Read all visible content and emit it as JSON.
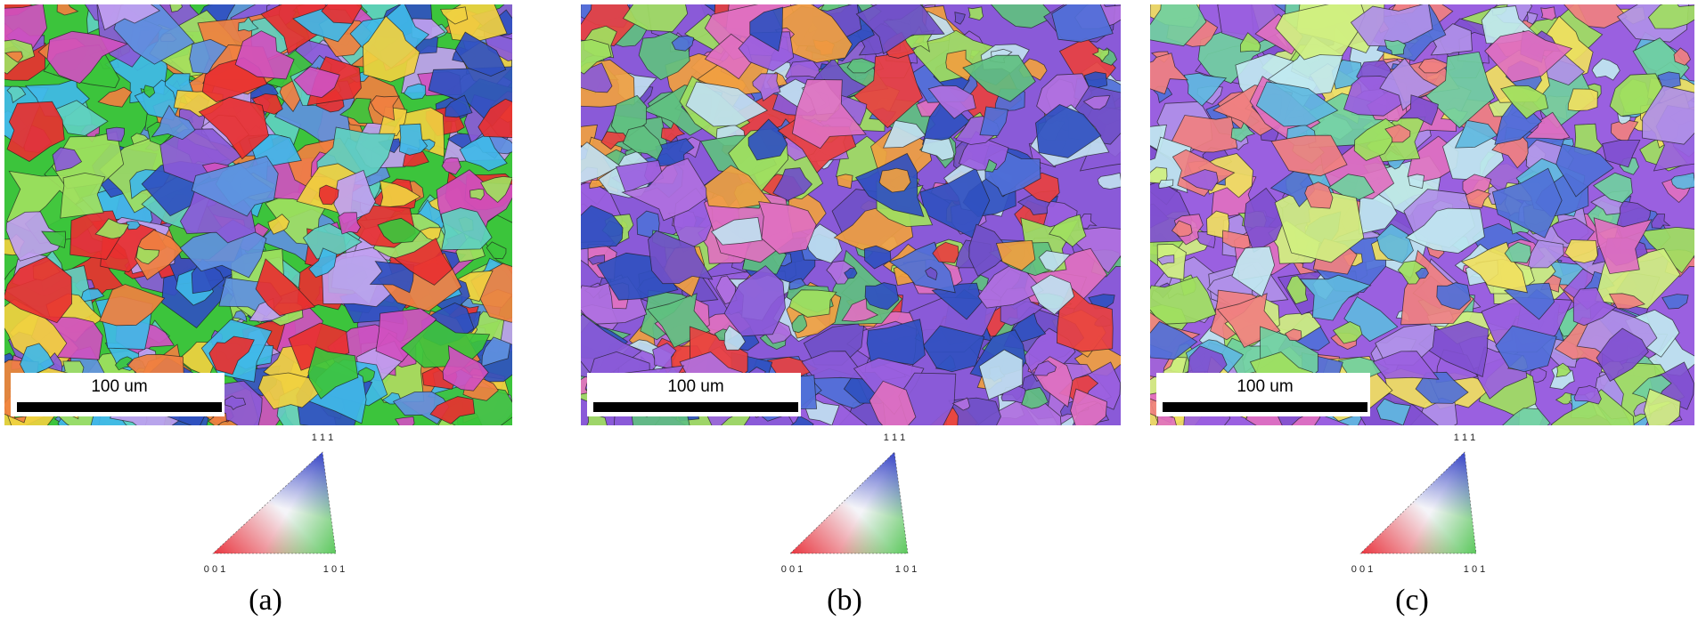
{
  "panels": [
    {
      "label": "(a)",
      "scale_bar": "100 um",
      "ipf": {
        "top": "1 1 1",
        "left": "0 0 1",
        "right": "1 0 1"
      }
    },
    {
      "label": "(b)",
      "scale_bar": "100 um",
      "ipf": {
        "top": "1 1 1",
        "left": "0 0 1",
        "right": "1 0 1"
      }
    },
    {
      "label": "(c)",
      "scale_bar": "100 um",
      "ipf": {
        "top": "1 1 1",
        "left": "0 0 1",
        "right": "1 0 1"
      }
    }
  ]
}
